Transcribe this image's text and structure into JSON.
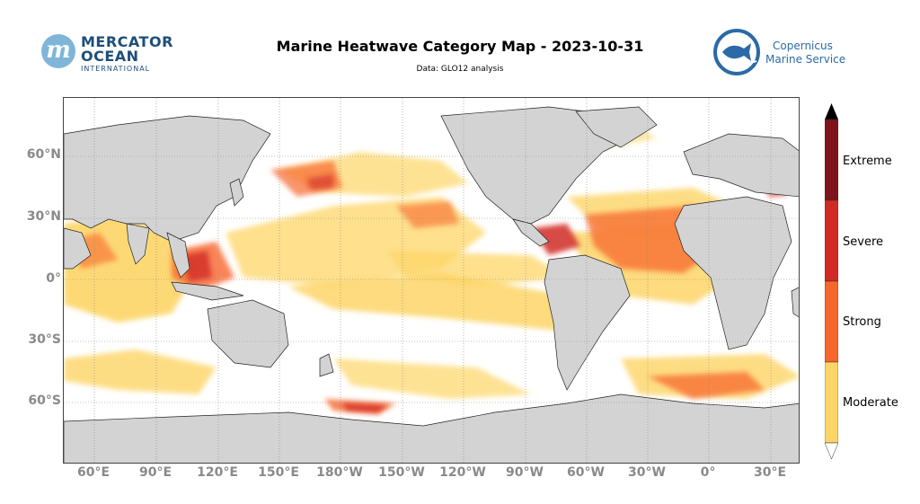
{
  "header": {
    "title": "Marine Heatwave Category Map - 2023-10-31",
    "subtitle": "Data: GLO12 analysis"
  },
  "logos": {
    "mercator": {
      "line1": "MERCATOR",
      "line2": "OCEAN",
      "line3": "INTERNATIONAL",
      "mark": "m"
    },
    "copernicus": {
      "line1": "Copernicus",
      "line2": "Marine Service"
    }
  },
  "map": {
    "lat_labels": [
      "60°N",
      "30°N",
      "0°",
      "30°S",
      "60°S"
    ],
    "lon_labels": [
      "60°E",
      "90°E",
      "120°E",
      "150°E",
      "180°W",
      "150°W",
      "120°W",
      "90°W",
      "60°W",
      "30°W",
      "0°",
      "30°E"
    ],
    "land_color": "#d3d3d3",
    "ocean_color": "#ffffff",
    "grid": true
  },
  "colorbar": {
    "categories": [
      {
        "label": "Moderate",
        "color": "#fdd567"
      },
      {
        "label": "Strong",
        "color": "#f7672c"
      },
      {
        "label": "Severe",
        "color": "#d12a24"
      },
      {
        "label": "Extreme",
        "color": "#7d1419"
      }
    ]
  }
}
